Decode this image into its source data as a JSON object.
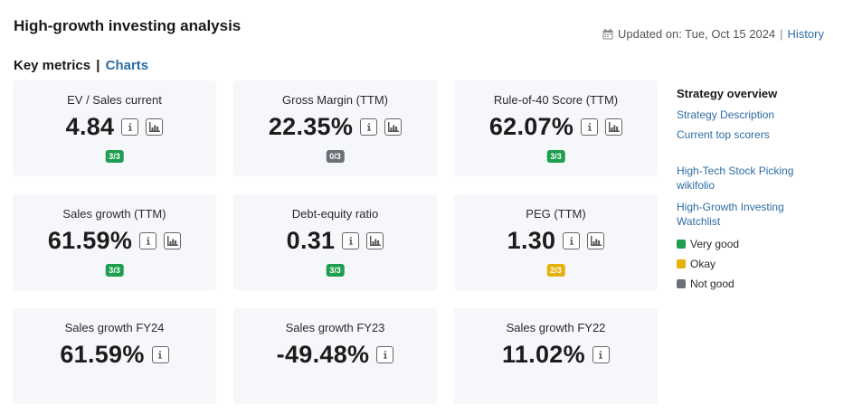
{
  "header": {
    "title": "High-growth investing analysis",
    "updated_text": "Updated on: Tue, Oct 15 2024",
    "separator": "|",
    "history_link": "History"
  },
  "section": {
    "key_metrics": "Key metrics",
    "divider": "|",
    "charts_link": "Charts"
  },
  "metrics": [
    {
      "label": "EV / Sales current",
      "value": "4.84",
      "badge": "3/3",
      "status": "good",
      "has_chart": true
    },
    {
      "label": "Gross Margin (TTM)",
      "value": "22.35%",
      "badge": "0/3",
      "status": "bad",
      "has_chart": true
    },
    {
      "label": "Rule-of-40 Score (TTM)",
      "value": "62.07%",
      "badge": "3/3",
      "status": "good",
      "has_chart": true
    },
    {
      "label": "Sales growth (TTM)",
      "value": "61.59%",
      "badge": "3/3",
      "status": "good",
      "has_chart": true
    },
    {
      "label": "Debt-equity ratio",
      "value": "0.31",
      "badge": "3/3",
      "status": "good",
      "has_chart": true
    },
    {
      "label": "PEG (TTM)",
      "value": "1.30",
      "badge": "2/3",
      "status": "okay",
      "has_chart": true
    },
    {
      "label": "Sales growth FY24",
      "value": "61.59%",
      "badge": "",
      "status": "",
      "has_chart": false
    },
    {
      "label": "Sales growth FY23",
      "value": "-49.48%",
      "badge": "",
      "status": "",
      "has_chart": false
    },
    {
      "label": "Sales growth FY22",
      "value": "11.02%",
      "badge": "",
      "status": "",
      "has_chart": false
    }
  ],
  "sidebar": {
    "title": "Strategy overview",
    "links_top": [
      "Strategy Description",
      "Current top scorers"
    ],
    "links_bottom": [
      "High-Tech Stock Picking wikifolio",
      "High-Growth Investing Watchlist"
    ],
    "legend": [
      {
        "label": "Very good",
        "color": "#1e9e4f"
      },
      {
        "label": "Okay",
        "color": "#e6b10a"
      },
      {
        "label": "Not good",
        "color": "#6b7078"
      }
    ]
  },
  "icons": {
    "info": "info-icon",
    "chart": "chart-icon",
    "calendar": "calendar-icon"
  }
}
